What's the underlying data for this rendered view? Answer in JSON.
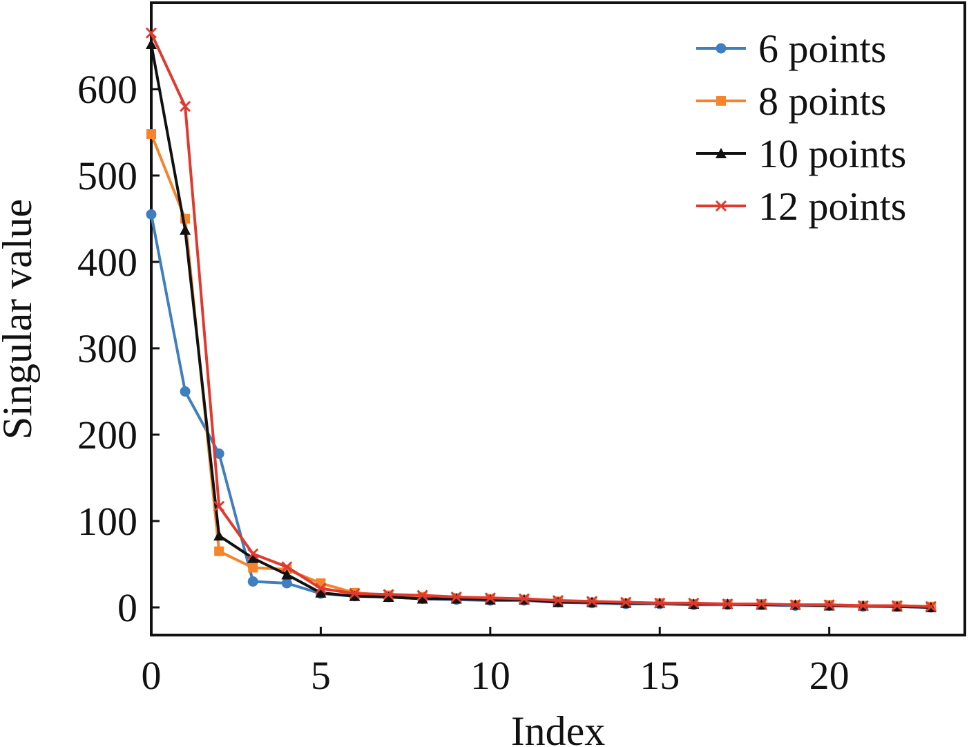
{
  "chart_data": {
    "type": "line",
    "xlabel": "Index",
    "ylabel": "Singular value",
    "xlim": [
      0,
      24.0
    ],
    "ylim": [
      -32,
      700
    ],
    "xticks": [
      0,
      5,
      10,
      15,
      20
    ],
    "yticks": [
      0,
      100,
      200,
      300,
      400,
      500,
      600
    ],
    "grid": false,
    "legend_position": "top-right",
    "x": [
      0,
      1,
      2,
      3,
      4,
      5,
      6,
      7,
      8,
      9,
      10,
      11,
      12,
      13,
      14,
      15,
      16,
      17,
      18,
      19,
      20,
      21,
      22,
      23
    ],
    "series": [
      {
        "name": "6 points",
        "color": "#3f7fbf",
        "marker": "circle",
        "values": [
          455,
          250,
          178,
          30,
          28,
          16,
          13,
          12,
          10,
          9,
          8,
          8,
          6,
          5,
          4,
          4,
          3,
          3,
          3,
          2,
          2,
          1,
          1,
          0
        ]
      },
      {
        "name": "8 points",
        "color": "#f5842a",
        "marker": "square",
        "values": [
          548,
          450,
          65,
          46,
          44,
          28,
          17,
          14,
          12,
          11,
          10,
          9,
          7,
          6,
          5,
          5,
          4,
          4,
          4,
          3,
          3,
          2,
          2,
          1
        ]
      },
      {
        "name": "10 points",
        "color": "#111111",
        "marker": "triangle",
        "values": [
          652,
          437,
          83,
          57,
          38,
          17,
          13,
          12,
          10,
          10,
          9,
          9,
          6,
          6,
          5,
          5,
          4,
          4,
          3,
          3,
          2,
          2,
          1,
          0
        ]
      },
      {
        "name": "12 points",
        "color": "#e03a2e",
        "marker": "x",
        "values": [
          665,
          580,
          117,
          62,
          47,
          22,
          16,
          15,
          14,
          12,
          11,
          10,
          8,
          7,
          6,
          5,
          5,
          4,
          4,
          3,
          3,
          2,
          2,
          1
        ]
      }
    ]
  }
}
